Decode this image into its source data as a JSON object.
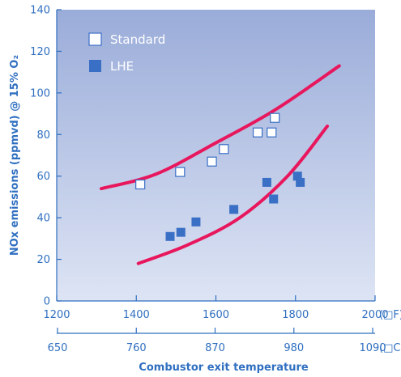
{
  "chart_data": {
    "type": "scatter",
    "title": "",
    "ylabel": "NOx emissions (ppmvd) @ 15% O₂",
    "xlabel": "Combustor exit temperature",
    "xlim": [
      1200,
      2000
    ],
    "ylim": [
      0,
      140
    ],
    "x_ticks": [
      1200,
      1400,
      1600,
      1800,
      2000
    ],
    "x_tick_labels": [
      "1200",
      "1400",
      "1600",
      "1800",
      "2000"
    ],
    "x_unit": "(□F)",
    "x2_ticks": [
      1202,
      1400,
      1598,
      1796,
      1994
    ],
    "x2_tick_labels": [
      "650",
      "760",
      "870",
      "980",
      "1090"
    ],
    "x2_unit": "(□C)",
    "y_ticks": [
      0,
      20,
      40,
      60,
      80,
      100,
      120,
      140
    ],
    "y_tick_labels": [
      "0",
      "20",
      "40",
      "60",
      "80",
      "100",
      "120",
      "140"
    ],
    "grid": false,
    "legend_position": "top-left",
    "series": [
      {
        "name": "Standard",
        "marker": "hollow-square",
        "points": [
          {
            "x": 1410,
            "y": 56
          },
          {
            "x": 1510,
            "y": 62
          },
          {
            "x": 1590,
            "y": 67
          },
          {
            "x": 1620,
            "y": 73
          },
          {
            "x": 1705,
            "y": 81
          },
          {
            "x": 1740,
            "y": 81
          },
          {
            "x": 1748,
            "y": 88
          }
        ]
      },
      {
        "name": "LHE",
        "marker": "filled-square",
        "points": [
          {
            "x": 1485,
            "y": 31
          },
          {
            "x": 1512,
            "y": 33
          },
          {
            "x": 1550,
            "y": 38
          },
          {
            "x": 1645,
            "y": 44
          },
          {
            "x": 1728,
            "y": 57
          },
          {
            "x": 1745,
            "y": 49
          },
          {
            "x": 1805,
            "y": 60
          },
          {
            "x": 1812,
            "y": 57
          }
        ]
      }
    ],
    "curves": [
      {
        "points": [
          [
            1312,
            54
          ],
          [
            1450,
            61
          ],
          [
            1600,
            76
          ],
          [
            1750,
            92
          ],
          [
            1910,
            113
          ]
        ]
      },
      {
        "points": [
          [
            1405,
            18
          ],
          [
            1530,
            27
          ],
          [
            1660,
            40
          ],
          [
            1780,
            60
          ],
          [
            1880,
            84
          ]
        ]
      }
    ]
  },
  "colors": {
    "plot_bg_top": "#9aacd9",
    "plot_bg_bottom": "#dde4f4",
    "axis": "#2f6fc0",
    "text": "#2f6fc0",
    "curve": "#e8175d",
    "lhe_marker": "#3a6fc6",
    "standard_marker_fill": "#ffffff",
    "standard_marker_stroke": "#3a6fc6",
    "legend_text": "#ffffff"
  }
}
